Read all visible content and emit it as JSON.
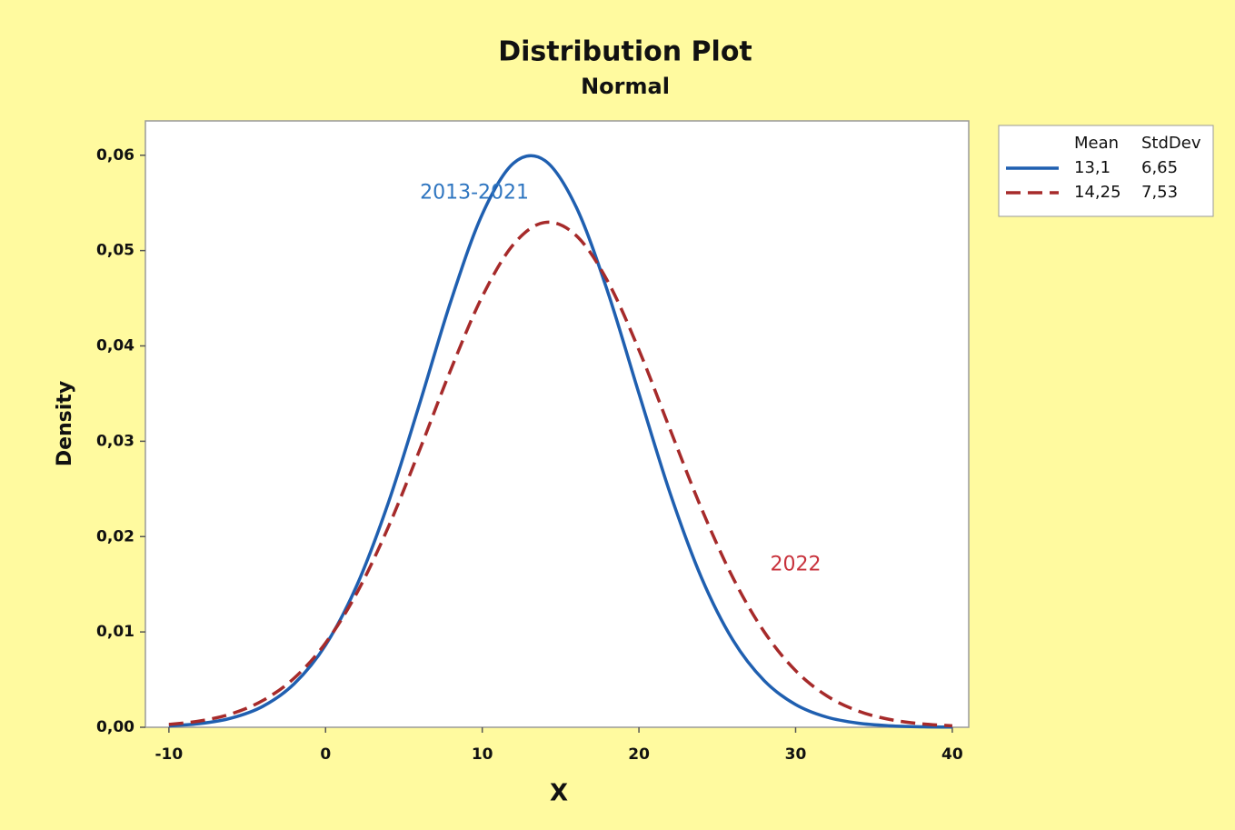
{
  "chart_data": {
    "type": "line",
    "title": "Distribution Plot",
    "subtitle": "Normal",
    "xlabel": "X",
    "ylabel": "Density",
    "x": [
      -10,
      -8,
      -6,
      -4,
      -2,
      0,
      2,
      4,
      6,
      8,
      10,
      12,
      14,
      16,
      18,
      20,
      22,
      24,
      26,
      28,
      30,
      32,
      34,
      36,
      38,
      40
    ],
    "series": [
      {
        "mean": "13,1",
        "stdev": "6,65",
        "color": "#1f5fb0",
        "line_style": "solid",
        "values": [
          0.00014,
          0.00039,
          0.00097,
          0.0022,
          0.00456,
          0.00862,
          0.0149,
          0.02352,
          0.03392,
          0.04471,
          0.05381,
          0.05917,
          0.05944,
          0.05455,
          0.04572,
          0.03502,
          0.0245,
          0.01566,
          0.00914,
          0.00488,
          0.00238,
          0.00106,
          0.00043,
          0.00016,
          5e-05,
          2e-05
        ]
      },
      {
        "mean": "14,25",
        "stdev": "7,53",
        "color": "#a62a2a",
        "line_style": "dashed",
        "values": [
          0.0003,
          0.00067,
          0.00142,
          0.00281,
          0.00516,
          0.00884,
          0.0141,
          0.02098,
          0.02907,
          0.03754,
          0.04518,
          0.05066,
          0.05295,
          0.05157,
          0.0468,
          0.03958,
          0.03119,
          0.02291,
          0.01568,
          0.01,
          0.00594,
          0.00329,
          0.0017,
          0.00082,
          0.00037,
          0.00015
        ]
      }
    ],
    "legend_columns": [
      "Mean",
      "StdDev"
    ],
    "annotations": [
      {
        "text": "2013-2021",
        "color": "#2e75c0",
        "x": 9.5,
        "y": 0.056
      },
      {
        "text": "2022",
        "color": "#c8323c",
        "x": 30,
        "y": 0.017
      }
    ],
    "xlim": [
      -11.5,
      41.05
    ],
    "ylim": [
      0,
      0.0636
    ],
    "xticks": [
      -10,
      0,
      10,
      20,
      30,
      40
    ],
    "yticks": [
      {
        "value": 0,
        "label": "0,00"
      },
      {
        "value": 0.01,
        "label": "0,01"
      },
      {
        "value": 0.02,
        "label": "0,02"
      },
      {
        "value": 0.03,
        "label": "0,03"
      },
      {
        "value": 0.04,
        "label": "0,04"
      },
      {
        "value": 0.05,
        "label": "0,05"
      },
      {
        "value": 0.06,
        "label": "0,06"
      }
    ],
    "grid": false
  }
}
